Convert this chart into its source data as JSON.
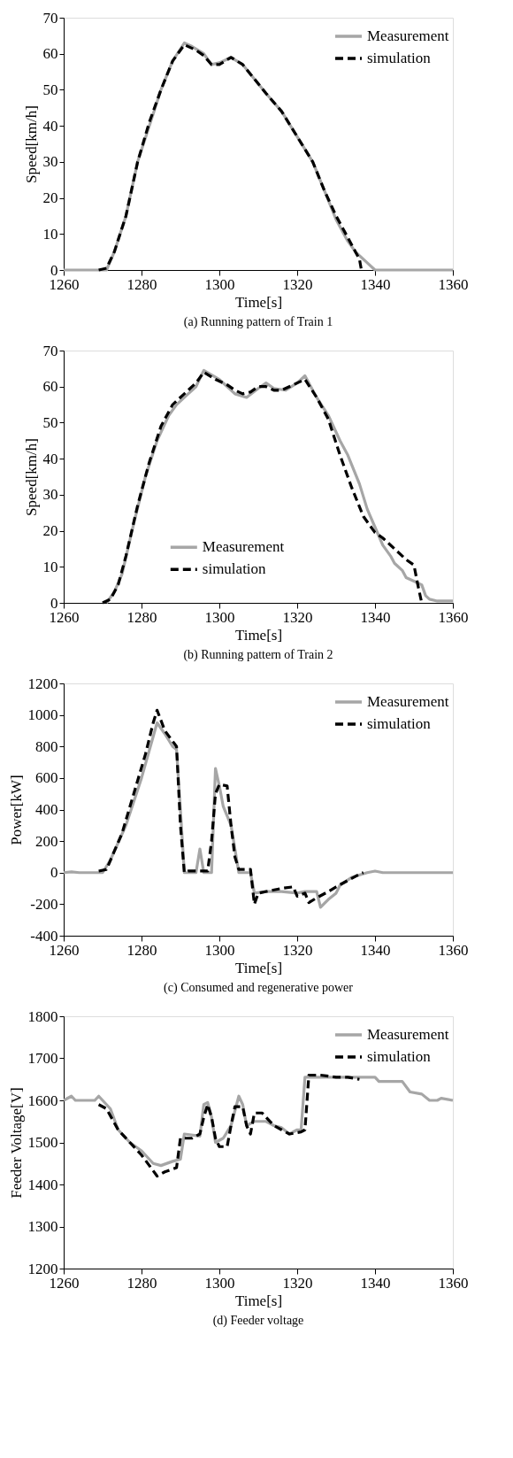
{
  "chart_data": [
    {
      "type": "line",
      "xlabel": "Time[s]",
      "ylabel": "Speed[km/h]",
      "annotations": [
        "(a) Running pattern of Train 1"
      ],
      "xlim": [
        1260,
        1360
      ],
      "xticks": [
        1260,
        1280,
        1300,
        1320,
        1340,
        1360
      ],
      "ylim": [
        0,
        70
      ],
      "yticks": [
        0,
        10,
        20,
        30,
        40,
        50,
        60,
        70
      ],
      "legend": "top right",
      "series": [
        {
          "name": "Measurement",
          "color": "#a6a6a6",
          "line_style": "solid",
          "x": [
            1260,
            1269,
            1271,
            1273,
            1276,
            1279,
            1282,
            1285,
            1288,
            1291,
            1293,
            1296,
            1298,
            1300,
            1303,
            1306,
            1309,
            1312,
            1316,
            1320,
            1324,
            1327,
            1330,
            1333,
            1335,
            1338,
            1340,
            1360
          ],
          "values": [
            0,
            0,
            0,
            5,
            15,
            30,
            40,
            50,
            58,
            63,
            62,
            60,
            57,
            57.5,
            59,
            57,
            53,
            49,
            44,
            37,
            30,
            22,
            14,
            8,
            5,
            2,
            0,
            0
          ]
        },
        {
          "name": "simulation",
          "color": "#000000",
          "line_style": "dashed",
          "x": [
            1269,
            1271,
            1273,
            1276,
            1279,
            1282,
            1285,
            1288,
            1291,
            1294,
            1296,
            1298,
            1300,
            1303,
            1306,
            1309,
            1312,
            1316,
            1320,
            1324,
            1327,
            1330,
            1333,
            1335,
            1336,
            1336.5
          ],
          "values": [
            0,
            0.5,
            5,
            15,
            30,
            41,
            50,
            58,
            62.5,
            61,
            59.5,
            57,
            57,
            59,
            57,
            53,
            49,
            44,
            37,
            30,
            22,
            15,
            9,
            5,
            3,
            0
          ]
        }
      ]
    },
    {
      "type": "line",
      "xlabel": "Time[s]",
      "ylabel": "Speed[km/h]",
      "annotations": [
        "(b) Running pattern of Train 2"
      ],
      "xlim": [
        1260,
        1360
      ],
      "xticks": [
        1260,
        1280,
        1300,
        1320,
        1340,
        1360
      ],
      "ylim": [
        0,
        70
      ],
      "yticks": [
        0,
        10,
        20,
        30,
        40,
        50,
        60,
        70
      ],
      "legend": "bottom",
      "series": [
        {
          "name": "Measurement",
          "color": "#a6a6a6",
          "line_style": "solid",
          "x": [
            1271,
            1273,
            1275,
            1278,
            1281,
            1284,
            1287,
            1289,
            1292,
            1294,
            1296,
            1300,
            1304,
            1307,
            1310,
            1312,
            1314,
            1317,
            1320,
            1322,
            1325,
            1328,
            1331,
            1333,
            1336,
            1338,
            1340,
            1342,
            1344,
            1345,
            1347,
            1348,
            1350,
            1352,
            1353,
            1354,
            1356,
            1360
          ],
          "values": [
            0,
            3,
            8,
            22,
            35,
            45,
            52,
            55,
            58,
            60,
            64.5,
            62,
            58,
            57,
            59.5,
            61,
            59.5,
            59,
            61,
            63,
            57,
            52,
            45,
            41,
            33,
            26,
            21,
            16,
            13,
            11,
            9,
            7,
            6,
            5,
            2,
            1,
            0.5,
            0.5
          ]
        },
        {
          "name": "simulation",
          "color": "#000000",
          "line_style": "dashed",
          "x": [
            1270,
            1272,
            1274,
            1276,
            1279,
            1282,
            1285,
            1288,
            1291,
            1294,
            1296,
            1299,
            1302,
            1304,
            1306,
            1308,
            1310,
            1312,
            1314,
            1316,
            1318,
            1320,
            1322,
            1325,
            1328,
            1331,
            1334,
            1337,
            1340,
            1342,
            1345,
            1348,
            1350,
            1351,
            1352
          ],
          "values": [
            0,
            1,
            5,
            13,
            27,
            39,
            49,
            55,
            58,
            61,
            64,
            62,
            60.5,
            59,
            58,
            58.5,
            60,
            60,
            59,
            59,
            60,
            61,
            62,
            57,
            51,
            41,
            32,
            24,
            19.5,
            18,
            15,
            12,
            10.5,
            5,
            0
          ]
        }
      ]
    },
    {
      "type": "line",
      "xlabel": "Time[s]",
      "ylabel": "Power[kW]",
      "annotations": [
        "(c) Consumed and regenerative power"
      ],
      "xlim": [
        1260,
        1360
      ],
      "xticks": [
        1260,
        1280,
        1300,
        1320,
        1340,
        1360
      ],
      "ylim": [
        -400,
        1200
      ],
      "yticks": [
        -400,
        -200,
        0,
        200,
        400,
        600,
        800,
        1000,
        1200
      ],
      "legend": "top right",
      "series": [
        {
          "name": "Measurement",
          "color": "#a6a6a6",
          "line_style": "solid",
          "x": [
            1260,
            1262,
            1264,
            1270,
            1272,
            1276,
            1280,
            1284,
            1286,
            1288,
            1289,
            1290,
            1291,
            1294,
            1295,
            1296,
            1298,
            1299,
            1300,
            1301,
            1303,
            1304,
            1305,
            1308,
            1309,
            1312,
            1316,
            1320,
            1322,
            1325,
            1326,
            1328,
            1330,
            1331,
            1334,
            1338,
            1340,
            1342,
            1360
          ],
          "values": [
            0,
            5,
            0,
            0,
            80,
            300,
            600,
            950,
            880,
            800,
            780,
            400,
            0,
            0,
            150,
            0,
            0,
            660,
            550,
            420,
            300,
            150,
            0,
            0,
            -130,
            -120,
            -120,
            -130,
            -120,
            -120,
            -220,
            -170,
            -130,
            -80,
            -30,
            0,
            10,
            0,
            0
          ]
        },
        {
          "name": "simulation",
          "color": "#000000",
          "line_style": "dashed",
          "x": [
            1269,
            1271,
            1275,
            1278,
            1281,
            1283,
            1284,
            1286,
            1289,
            1290,
            1291,
            1292,
            1297,
            1298,
            1299,
            1300,
            1302,
            1303,
            1304,
            1305,
            1308,
            1309,
            1310,
            1316,
            1319,
            1320,
            1322,
            1323,
            1325,
            1328,
            1330,
            1333,
            1336,
            1337
          ],
          "values": [
            10,
            20,
            250,
            500,
            750,
            950,
            1030,
            900,
            800,
            300,
            0,
            10,
            10,
            200,
            500,
            560,
            550,
            300,
            100,
            20,
            20,
            -200,
            -130,
            -100,
            -90,
            -150,
            -130,
            -190,
            -160,
            -120,
            -90,
            -50,
            -10,
            0
          ]
        }
      ]
    },
    {
      "type": "line",
      "xlabel": "Time[s]",
      "ylabel": "Feeder Voltage[V]",
      "annotations": [
        "(d) Feeder voltage"
      ],
      "xlim": [
        1260,
        1360
      ],
      "xticks": [
        1260,
        1280,
        1300,
        1320,
        1340,
        1360
      ],
      "ylim": [
        1200,
        1800
      ],
      "yticks": [
        1200,
        1300,
        1400,
        1500,
        1600,
        1700,
        1800
      ],
      "legend": "top right",
      "series": [
        {
          "name": "Measurement",
          "color": "#a6a6a6",
          "line_style": "solid",
          "x": [
            1260,
            1262,
            1263,
            1268,
            1269,
            1270,
            1272,
            1274,
            1277,
            1280,
            1283,
            1285,
            1288,
            1290,
            1291,
            1295,
            1296,
            1297,
            1298,
            1299,
            1301,
            1303,
            1305,
            1306,
            1307,
            1309,
            1312,
            1314,
            1316,
            1318,
            1320,
            1321,
            1322,
            1340,
            1341,
            1347,
            1349,
            1352,
            1354,
            1356,
            1357,
            1360
          ],
          "values": [
            1600,
            1610,
            1600,
            1600,
            1610,
            1600,
            1580,
            1530,
            1500,
            1480,
            1450,
            1445,
            1455,
            1460,
            1520,
            1515,
            1590,
            1595,
            1560,
            1500,
            1510,
            1540,
            1610,
            1590,
            1540,
            1550,
            1550,
            1540,
            1535,
            1520,
            1530,
            1530,
            1655,
            1655,
            1645,
            1645,
            1620,
            1615,
            1600,
            1600,
            1605,
            1600
          ]
        },
        {
          "name": "simulation",
          "color": "#000000",
          "line_style": "dashed",
          "x": [
            1269,
            1271,
            1274,
            1277,
            1280,
            1284,
            1286,
            1289,
            1290,
            1293,
            1295,
            1296,
            1297,
            1298,
            1299,
            1300,
            1302,
            1303,
            1304,
            1306,
            1307,
            1308,
            1309,
            1311,
            1312,
            1314,
            1316,
            1318,
            1321,
            1322,
            1323,
            1326,
            1330,
            1333,
            1336
          ],
          "values": [
            1590,
            1580,
            1530,
            1500,
            1470,
            1420,
            1430,
            1440,
            1510,
            1510,
            1520,
            1560,
            1590,
            1560,
            1510,
            1490,
            1490,
            1540,
            1585,
            1585,
            1540,
            1520,
            1570,
            1570,
            1560,
            1540,
            1530,
            1520,
            1525,
            1530,
            1660,
            1660,
            1655,
            1655,
            1650
          ]
        }
      ]
    }
  ]
}
